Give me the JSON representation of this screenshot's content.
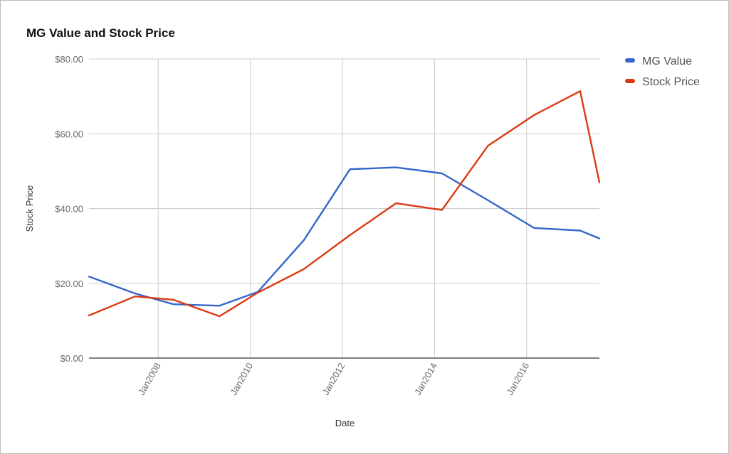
{
  "chart_data": {
    "type": "line",
    "title": "MG Value and Stock Price",
    "xlabel": "Date",
    "ylabel": "Stock Price",
    "x": [
      "2006-07-01",
      "2007-07-01",
      "2008-05-01",
      "2009-05-01",
      "2010-03-01",
      "2011-03-01",
      "2012-03-01",
      "2013-03-01",
      "2014-03-01",
      "2015-03-01",
      "2016-03-01",
      "2017-03-01",
      "2017-08-01"
    ],
    "xlim": [
      "2006-07-01",
      "2017-08-01"
    ],
    "x_tick_labels": [
      {
        "date": "2008-01-01",
        "label": "Jan2008"
      },
      {
        "date": "2010-01-01",
        "label": "Jan2010"
      },
      {
        "date": "2012-01-01",
        "label": "Jan2012"
      },
      {
        "date": "2014-01-01",
        "label": "Jan2014"
      },
      {
        "date": "2016-01-01",
        "label": "Jan2016"
      }
    ],
    "y_ticks": [
      0,
      20,
      40,
      60,
      80
    ],
    "y_tick_labels": [
      "$0.00",
      "$20.00",
      "$40.00",
      "$60.00",
      "$80.00"
    ],
    "ylim": [
      0,
      80
    ],
    "grid": true,
    "legend_position": "right",
    "series": [
      {
        "name": "MG Value",
        "color": "#3366cc",
        "values": [
          21.8,
          17.3,
          14.4,
          14.0,
          17.7,
          31.5,
          50.5,
          51.0,
          49.4,
          42.2,
          34.8,
          34.1,
          32.0
        ]
      },
      {
        "name": "Stock Price",
        "color": "#dc3912",
        "values": [
          11.4,
          16.5,
          15.6,
          11.2,
          17.5,
          23.8,
          32.9,
          41.4,
          39.6,
          56.8,
          65.0,
          71.4,
          47.0
        ]
      }
    ]
  }
}
